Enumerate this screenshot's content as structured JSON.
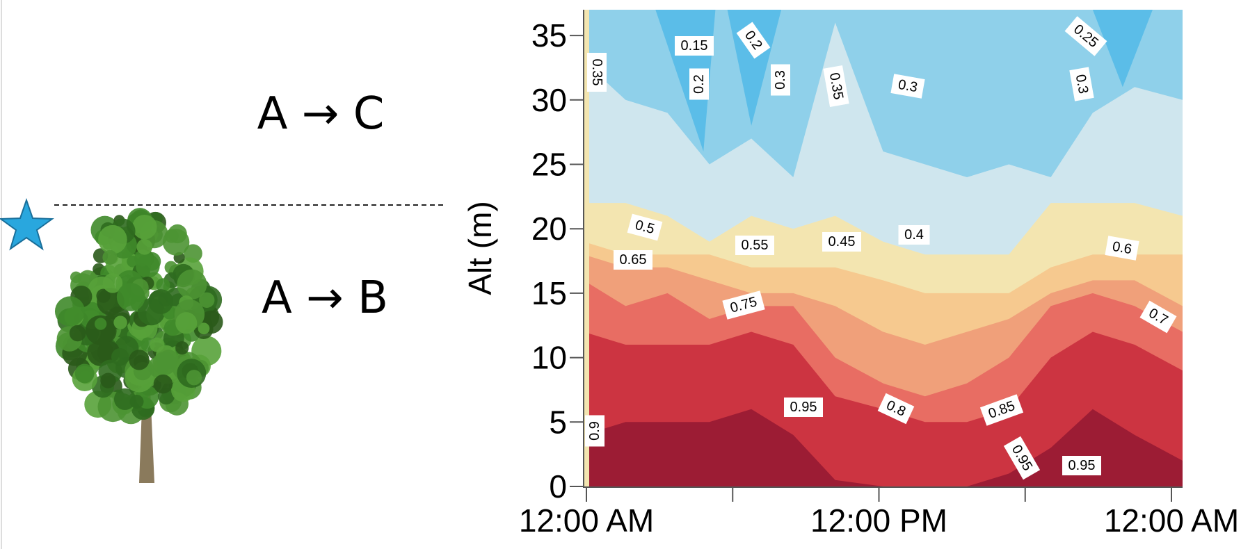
{
  "diagram": {
    "labels": [
      "A → C",
      "A → B"
    ]
  },
  "chart_data": {
    "type": "contour",
    "ylabel": "Alt (m)",
    "categories": [
      "12:00 AM",
      null,
      "12:00 PM",
      null,
      "12:00 AM"
    ],
    "ylim": [
      0,
      37
    ],
    "yticks": [
      0,
      5,
      10,
      15,
      20,
      25,
      30,
      35
    ],
    "contour_labels": [
      0.35,
      0.15,
      0.2,
      0.2,
      0.3,
      0.35,
      0.3,
      0.25,
      0.3,
      0.5,
      0.65,
      0.55,
      0.45,
      0.4,
      0.6,
      0.75,
      0.7,
      0.95,
      0.8,
      0.85,
      0.95,
      0.95,
      0.9
    ]
  }
}
